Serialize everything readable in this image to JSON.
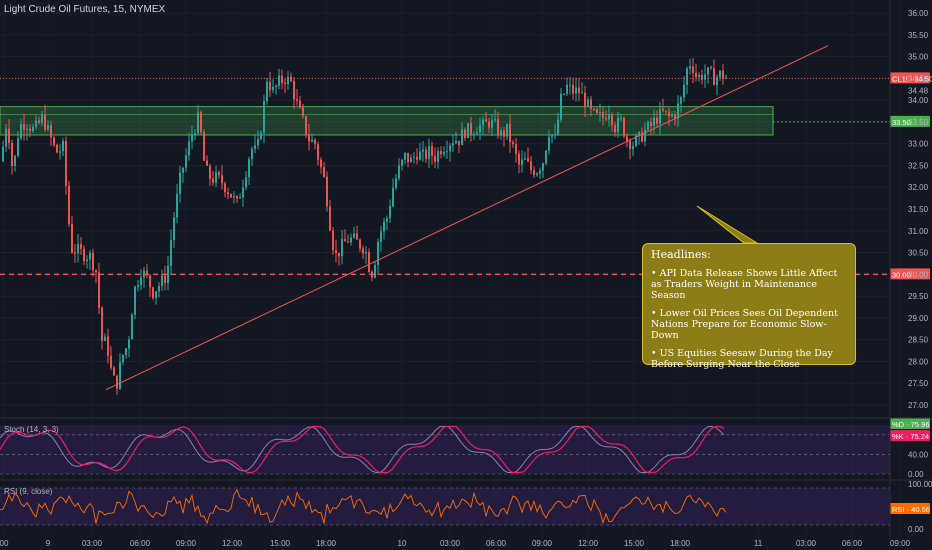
{
  "title": "Light Crude Oil Futures, 15, NYMEX",
  "headlines": {
    "title": "Headlines:",
    "items": [
      "• API Data Release Shows Little Affect as Traders Weight in Maintenance Season",
      "• Lower Oil Prices Sees Oil Dependent Nations Prepare for Economic Slow-Down",
      "• US Equities Seesaw During the Day Before Surging Near the Close"
    ]
  },
  "price_badges": {
    "last": "CL1! · 34.50",
    "last2": "34.48",
    "resistance": "33.50",
    "support": "30.00"
  },
  "stoch": {
    "label": "Stoch (14, 3, 3)",
    "d_badge": "%D · 75.96",
    "k_badge": "%K · 75.24"
  },
  "rsi": {
    "label": "RSI (9, close)",
    "badge": "RSI · 40.56"
  },
  "colors": {
    "background": "#131722",
    "up": "#26a69a",
    "down": "#ef5350",
    "support_line": "#ef5350",
    "zone_fill": "rgba(76,175,80,0.25)",
    "zone_border": "#4caf50",
    "stoch_k": "#e91e63",
    "stoch_d": "#8d7db0",
    "rsi": "#ff6d00",
    "panel_fill": "#2b1f4a"
  },
  "chart_data": {
    "type": "candlestick",
    "title": "Light Crude Oil Futures, 15, NYMEX",
    "y_ticks": [
      27.0,
      27.5,
      28.0,
      28.5,
      29.0,
      29.5,
      30.0,
      30.5,
      31.0,
      31.5,
      32.0,
      32.5,
      33.0,
      33.5,
      34.0,
      34.5,
      35.0,
      35.5,
      36.0
    ],
    "y_tick_labels": [
      "27.00",
      "27.50",
      "28.00",
      "28.50",
      "29.00",
      "29.50",
      "30.00",
      "30.50",
      "31.00",
      "31.50",
      "32.00",
      "32.50",
      "33.00",
      "33.50",
      "34.00",
      "34.50",
      "35.00",
      "35.50",
      "36.00"
    ],
    "ylim": [
      26.7,
      36.3
    ],
    "x_tick_labels": [
      "00",
      "9",
      "03:00",
      "06:00",
      "09:00",
      "12:00",
      "15:00",
      "18:00",
      "10",
      "03:00",
      "06:00",
      "09:00",
      "12:00",
      "15:00",
      "18:00",
      "11",
      "03:00",
      "06:00",
      "09:00"
    ],
    "price_path": [
      [
        0,
        32.6
      ],
      [
        6,
        33.6
      ],
      [
        12,
        32.3
      ],
      [
        18,
        33.4
      ],
      [
        25,
        33.5
      ],
      [
        33,
        33.3
      ],
      [
        42,
        33.6
      ],
      [
        55,
        32.8
      ],
      [
        62,
        32.9
      ],
      [
        70,
        30.6
      ],
      [
        80,
        30.5
      ],
      [
        90,
        30.4
      ],
      [
        96,
        30.0
      ],
      [
        100,
        28.5
      ],
      [
        106,
        28.4
      ],
      [
        110,
        27.8
      ],
      [
        115,
        27.4
      ],
      [
        121,
        28.1
      ],
      [
        127,
        28.4
      ],
      [
        133,
        29.6
      ],
      [
        140,
        30.1
      ],
      [
        146,
        29.9
      ],
      [
        152,
        29.6
      ],
      [
        160,
        29.8
      ],
      [
        166,
        30.0
      ],
      [
        172,
        31.2
      ],
      [
        180,
        32.3
      ],
      [
        186,
        32.8
      ],
      [
        192,
        33.3
      ],
      [
        198,
        33.6
      ],
      [
        204,
        32.4
      ],
      [
        210,
        32.2
      ],
      [
        216,
        32.2
      ],
      [
        222,
        32.1
      ],
      [
        228,
        31.9
      ],
      [
        236,
        31.6
      ],
      [
        244,
        32.3
      ],
      [
        250,
        32.9
      ],
      [
        256,
        32.8
      ],
      [
        262,
        33.7
      ],
      [
        266,
        34.5
      ],
      [
        272,
        34.2
      ],
      [
        278,
        34.4
      ],
      [
        284,
        34.5
      ],
      [
        290,
        34.4
      ],
      [
        296,
        33.9
      ],
      [
        302,
        33.5
      ],
      [
        308,
        33.1
      ],
      [
        314,
        33.0
      ],
      [
        318,
        32.6
      ],
      [
        324,
        32.1
      ],
      [
        330,
        31.0
      ],
      [
        334,
        30.4
      ],
      [
        340,
        30.6
      ],
      [
        346,
        30.8
      ],
      [
        352,
        30.8
      ],
      [
        358,
        30.7
      ],
      [
        364,
        30.6
      ],
      [
        368,
        30.2
      ],
      [
        372,
        30.0
      ],
      [
        376,
        30.7
      ],
      [
        380,
        31.0
      ],
      [
        386,
        31.3
      ],
      [
        392,
        32.0
      ],
      [
        398,
        32.4
      ],
      [
        404,
        32.7
      ],
      [
        410,
        32.6
      ],
      [
        416,
        32.8
      ],
      [
        422,
        32.7
      ],
      [
        428,
        32.8
      ],
      [
        434,
        32.7
      ],
      [
        440,
        32.9
      ],
      [
        446,
        33.0
      ],
      [
        452,
        33.1
      ],
      [
        458,
        33.1
      ],
      [
        464,
        33.3
      ],
      [
        470,
        33.3
      ],
      [
        476,
        33.4
      ],
      [
        482,
        33.4
      ],
      [
        488,
        33.5
      ],
      [
        494,
        33.4
      ],
      [
        500,
        33.2
      ],
      [
        506,
        33.3
      ],
      [
        512,
        32.9
      ],
      [
        518,
        32.5
      ],
      [
        524,
        32.6
      ],
      [
        530,
        32.4
      ],
      [
        536,
        32.4
      ],
      [
        542,
        32.6
      ],
      [
        548,
        33.3
      ],
      [
        554,
        33.1
      ],
      [
        560,
        34.0
      ],
      [
        566,
        34.3
      ],
      [
        572,
        34.2
      ],
      [
        578,
        34.2
      ],
      [
        584,
        34.0
      ],
      [
        590,
        33.7
      ],
      [
        596,
        33.6
      ],
      [
        602,
        33.6
      ],
      [
        608,
        33.8
      ],
      [
        614,
        33.4
      ],
      [
        620,
        33.5
      ],
      [
        626,
        33.1
      ],
      [
        632,
        33.0
      ],
      [
        638,
        33.1
      ],
      [
        644,
        33.3
      ],
      [
        650,
        33.4
      ],
      [
        656,
        33.6
      ],
      [
        662,
        33.7
      ],
      [
        668,
        33.6
      ],
      [
        674,
        33.7
      ],
      [
        680,
        34.0
      ],
      [
        686,
        34.7
      ],
      [
        690,
        34.9
      ],
      [
        696,
        34.5
      ],
      [
        702,
        34.6
      ],
      [
        708,
        34.6
      ],
      [
        714,
        34.5
      ],
      [
        720,
        34.6
      ],
      [
        726,
        34.5
      ]
    ],
    "support_level": 30.0,
    "resistance_level": 33.5,
    "last_price": 34.5,
    "stoch_ylim": [
      0,
      100
    ],
    "stoch_ticks": [
      0,
      40,
      80
    ],
    "stoch_tick_labels": [
      "0.00",
      "40.00",
      ""
    ],
    "rsi_ticks": [
      0,
      100
    ],
    "rsi_tick_labels": [
      "0.00",
      "100.00"
    ]
  }
}
